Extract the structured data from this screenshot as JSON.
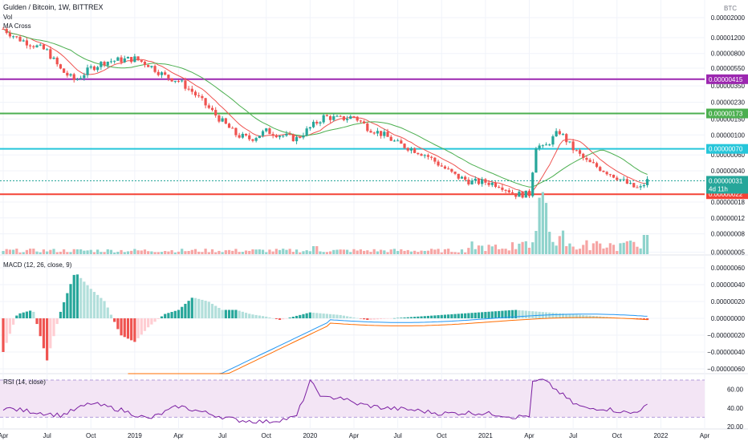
{
  "header": {
    "title": "Gulden / Bitcoin, 1W, BITTREX",
    "vol_label": "Vol",
    "ma_label": "MA Cross"
  },
  "price_axis": {
    "currency": "BTC",
    "ticks": [
      "0.00002000",
      "0.00001200",
      "0.00000800",
      "0.00000550",
      "0.00000350",
      "0.00000230",
      "0.00000150",
      "0.00000100",
      "0.00000060",
      "0.00000040",
      "0.00000018",
      "0.00000012",
      "0.00000008",
      "0.00000005"
    ]
  },
  "levels": [
    {
      "value": "0.00000415",
      "color": "#9c27b0"
    },
    {
      "value": "0.00000173",
      "color": "#4caf50"
    },
    {
      "value": "0.00000070",
      "color": "#26c6da"
    },
    {
      "value": "0.00000022",
      "color": "#f44336"
    }
  ],
  "last_price": {
    "value": "0.00000031",
    "countdown": "4d 11h",
    "color": "#26a69a"
  },
  "macd": {
    "label": "MACD (12, 26, close, 9)",
    "ticks": [
      "0.00000060",
      "0.00000040",
      "0.00000020",
      "0.00000000",
      "−0.00000020",
      "−0.00000040",
      "−0.00000060"
    ]
  },
  "rsi": {
    "label": "RSI (14, close)",
    "ticks": [
      "60.00",
      "40.00",
      "20.00"
    ],
    "upper": 70,
    "lower": 30
  },
  "time_axis": [
    "Apr",
    "Jul",
    "Oct",
    "2019",
    "Apr",
    "Jul",
    "Oct",
    "2020",
    "Apr",
    "Jul",
    "Oct",
    "2021",
    "Apr",
    "Jul",
    "Oct",
    "2022",
    "Apr"
  ],
  "chart_data": {
    "type": "candlestick",
    "timeframe": "1W",
    "price_range_btc": [
      1.6e-07,
      2.6e-05
    ],
    "price_path_btc": [
      [
        2018.25,
        1.5e-05
      ],
      [
        2018.33,
        1.18e-05
      ],
      [
        2018.42,
        1e-05
      ],
      [
        2018.5,
        8.5e-06
      ],
      [
        2018.58,
        5.2e-06
      ],
      [
        2018.66,
        4e-06
      ],
      [
        2018.75,
        5.5e-06
      ],
      [
        2018.83,
        6.5e-06
      ],
      [
        2018.92,
        6.8e-06
      ],
      [
        2019.0,
        7e-06
      ],
      [
        2019.08,
        6e-06
      ],
      [
        2019.17,
        4.5e-06
      ],
      [
        2019.25,
        4e-06
      ],
      [
        2019.33,
        3e-06
      ],
      [
        2019.42,
        2e-06
      ],
      [
        2019.5,
        1.4e-06
      ],
      [
        2019.58,
        1e-06
      ],
      [
        2019.66,
        9e-07
      ],
      [
        2019.75,
        1.1e-06
      ],
      [
        2019.83,
        1e-06
      ],
      [
        2019.92,
        9e-07
      ],
      [
        2020.0,
        1.2e-06
      ],
      [
        2020.08,
        1.6e-06
      ],
      [
        2020.17,
        1.5e-06
      ],
      [
        2020.25,
        1.6e-06
      ],
      [
        2020.33,
        1.2e-06
      ],
      [
        2020.42,
        1e-06
      ],
      [
        2020.5,
        8e-07
      ],
      [
        2020.58,
        7e-07
      ],
      [
        2020.66,
        6e-07
      ],
      [
        2020.75,
        4.5e-07
      ],
      [
        2020.83,
        3.5e-07
      ],
      [
        2020.92,
        3e-07
      ],
      [
        2021.0,
        3e-07
      ],
      [
        2021.08,
        2.8e-07
      ],
      [
        2021.17,
        2.2e-07
      ],
      [
        2021.25,
        2.2e-07
      ],
      [
        2021.29,
        8e-07
      ],
      [
        2021.33,
        7e-07
      ],
      [
        2021.42,
        1.1e-06
      ],
      [
        2021.5,
        7e-07
      ],
      [
        2021.58,
        5e-07
      ],
      [
        2021.66,
        4.2e-07
      ],
      [
        2021.75,
        3.4e-07
      ],
      [
        2021.83,
        2.7e-07
      ],
      [
        2021.88,
        2.5e-07
      ],
      [
        2021.92,
        3.1e-07
      ]
    ],
    "volume_peak_date": 2021.33,
    "macd_path": [
      [
        2018.25,
        -4e-07
      ],
      [
        2018.33,
        5e-08
      ],
      [
        2018.42,
        1e-07
      ],
      [
        2018.5,
        -5e-07
      ],
      [
        2018.58,
        1e-07
      ],
      [
        2018.66,
        5.5e-07
      ],
      [
        2018.75,
        3.5e-07
      ],
      [
        2018.83,
        2e-07
      ],
      [
        2018.92,
        -2e-07
      ],
      [
        2019.0,
        -2.8e-07
      ],
      [
        2019.08,
        -1e-07
      ],
      [
        2019.17,
        5e-08
      ],
      [
        2019.25,
        1e-07
      ],
      [
        2019.33,
        2.5e-07
      ],
      [
        2019.42,
        2e-07
      ],
      [
        2019.5,
        1e-07
      ],
      [
        2019.58,
        1e-07
      ],
      [
        2019.66,
        5e-08
      ],
      [
        2019.75,
        2e-08
      ],
      [
        2019.83,
        -2e-08
      ],
      [
        2020.0,
        7e-08
      ],
      [
        2020.17,
        4e-08
      ],
      [
        2020.33,
        -2e-08
      ],
      [
        2021.17,
        1e-07
      ],
      [
        2021.92,
        -2e-08
      ]
    ],
    "rsi_path": [
      [
        2018.25,
        40
      ],
      [
        2018.42,
        36
      ],
      [
        2018.58,
        32
      ],
      [
        2018.75,
        45
      ],
      [
        2018.92,
        38
      ],
      [
        2019.08,
        28
      ],
      [
        2019.25,
        42
      ],
      [
        2019.42,
        34
      ],
      [
        2019.58,
        27
      ],
      [
        2019.75,
        25
      ],
      [
        2019.92,
        30
      ],
      [
        2020.0,
        68
      ],
      [
        2020.08,
        50
      ],
      [
        2020.17,
        52
      ],
      [
        2020.25,
        45
      ],
      [
        2020.42,
        40
      ],
      [
        2020.58,
        38
      ],
      [
        2020.75,
        34
      ],
      [
        2020.92,
        35
      ],
      [
        2021.08,
        33
      ],
      [
        2021.17,
        30
      ],
      [
        2021.25,
        32
      ],
      [
        2021.27,
        68
      ],
      [
        2021.33,
        70
      ],
      [
        2021.42,
        57
      ],
      [
        2021.5,
        45
      ],
      [
        2021.58,
        39
      ],
      [
        2021.66,
        40
      ],
      [
        2021.75,
        37
      ],
      [
        2021.83,
        34
      ],
      [
        2021.92,
        42
      ]
    ]
  }
}
